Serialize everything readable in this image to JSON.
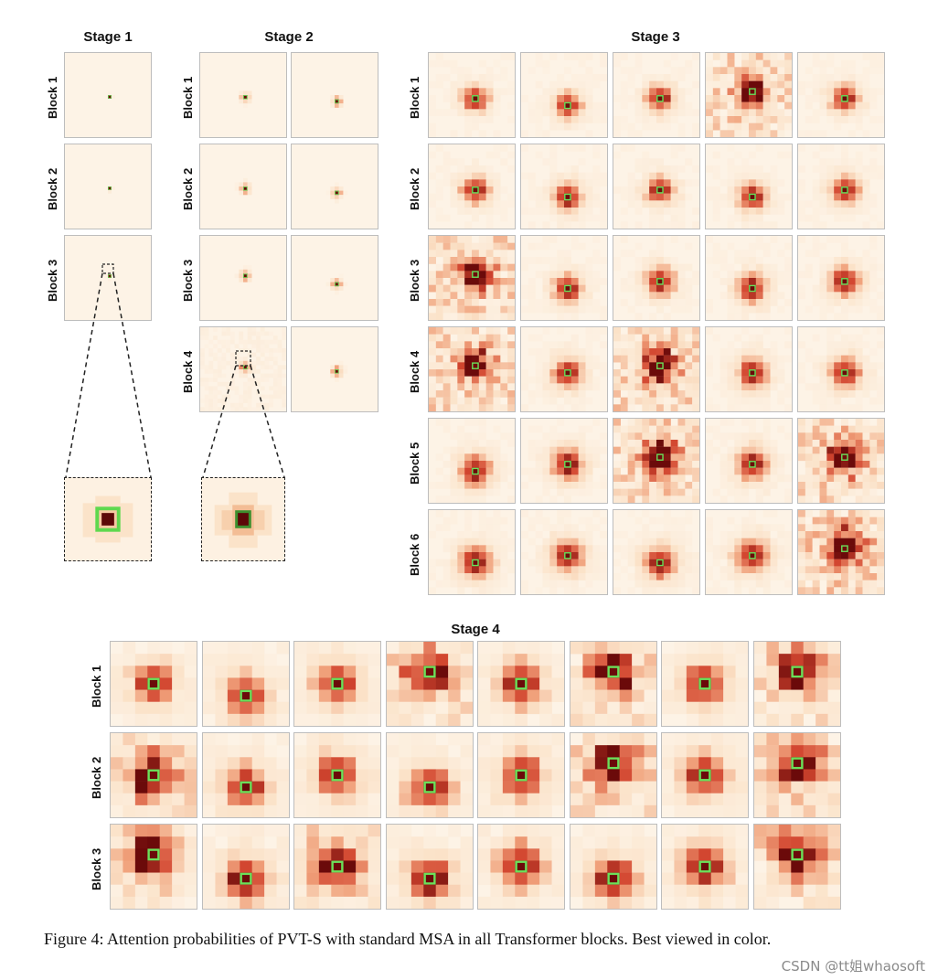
{
  "figure": {
    "stage_titles": [
      "Stage 1",
      "Stage 2",
      "Stage 3",
      "Stage 4"
    ],
    "stage1": {
      "rows": [
        "Block 1",
        "Block 2",
        "Block 3"
      ],
      "cols": 1
    },
    "stage2": {
      "rows": [
        "Block 1",
        "Block 2",
        "Block 3",
        "Block 4"
      ],
      "cols": 2
    },
    "stage3": {
      "rows": [
        "Block 1",
        "Block 2",
        "Block 3",
        "Block 4",
        "Block 5",
        "Block 6"
      ],
      "cols": 5
    },
    "stage4": {
      "rows": [
        "Block 1",
        "Block 2",
        "Block 3"
      ],
      "cols": 8
    },
    "colors": {
      "background": "#fdf3e6",
      "low": "#fbe2c8",
      "mid": "#f0a07a",
      "high": "#d2452f",
      "peak": "#6b0a0a",
      "query_marker": "#6be05a"
    }
  },
  "caption": {
    "text": "Figure 4: Attention probabilities of PVT-S with standard MSA in all Transformer blocks. Best viewed in color."
  },
  "watermark": {
    "text": "CSDN @tt姐whaosoft"
  }
}
